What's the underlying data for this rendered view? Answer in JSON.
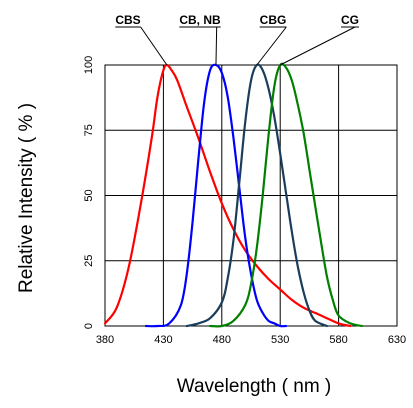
{
  "chart_data": {
    "type": "line",
    "title": "",
    "xlabel": "Wavelength ( nm )",
    "ylabel": "Relative Intensity ( % )",
    "xlim": [
      380,
      630
    ],
    "ylim": [
      0,
      100
    ],
    "x_ticks": [
      380,
      430,
      480,
      530,
      580,
      630
    ],
    "y_ticks": [
      0,
      25,
      50,
      75,
      100
    ],
    "grid": true,
    "legend": "callout labels above the plot, each pointing at a curve peak",
    "series": [
      {
        "name": "CBS",
        "color": "#ff0000",
        "peak_x": 433,
        "x": [
          380,
          390,
          400,
          410,
          420,
          425,
          430,
          433,
          437,
          442,
          450,
          460,
          470,
          480,
          490,
          500,
          510,
          520,
          530,
          540,
          550,
          560,
          570,
          580,
          590
        ],
        "y": [
          1,
          7,
          22,
          45,
          72,
          88,
          98,
          100,
          98,
          94,
          84,
          72,
          59,
          47,
          37,
          29,
          23,
          18,
          14,
          10,
          7,
          5,
          3,
          1,
          0
        ]
      },
      {
        "name": "CB, NB",
        "color": "#0000ff",
        "peak_x": 475,
        "x": [
          415,
          425,
          435,
          445,
          450,
          455,
          460,
          465,
          470,
          475,
          480,
          485,
          490,
          495,
          500,
          505,
          510,
          515,
          520,
          525,
          530,
          535
        ],
        "y": [
          0,
          0,
          1,
          8,
          20,
          40,
          64,
          86,
          98,
          100,
          97,
          88,
          72,
          53,
          34,
          20,
          10,
          5,
          2,
          1,
          0,
          0
        ]
      },
      {
        "name": "CBG",
        "color": "#1a3d5c",
        "peak_x": 510,
        "x": [
          450,
          460,
          470,
          480,
          485,
          490,
          495,
          500,
          505,
          510,
          515,
          520,
          525,
          530,
          535,
          540,
          545,
          550,
          555,
          560,
          570
        ],
        "y": [
          0,
          1,
          3,
          9,
          18,
          33,
          55,
          78,
          94,
          100,
          98,
          91,
          80,
          66,
          51,
          36,
          23,
          13,
          6,
          2,
          0
        ]
      },
      {
        "name": "CG",
        "color": "#008000",
        "peak_x": 530,
        "x": [
          470,
          480,
          490,
          500,
          505,
          510,
          515,
          520,
          525,
          530,
          535,
          540,
          545,
          550,
          555,
          560,
          565,
          570,
          575,
          580,
          590,
          600
        ],
        "y": [
          0,
          0,
          2,
          8,
          16,
          30,
          50,
          73,
          92,
          100,
          99,
          94,
          85,
          74,
          60,
          46,
          32,
          19,
          10,
          4,
          1,
          0
        ]
      }
    ]
  }
}
